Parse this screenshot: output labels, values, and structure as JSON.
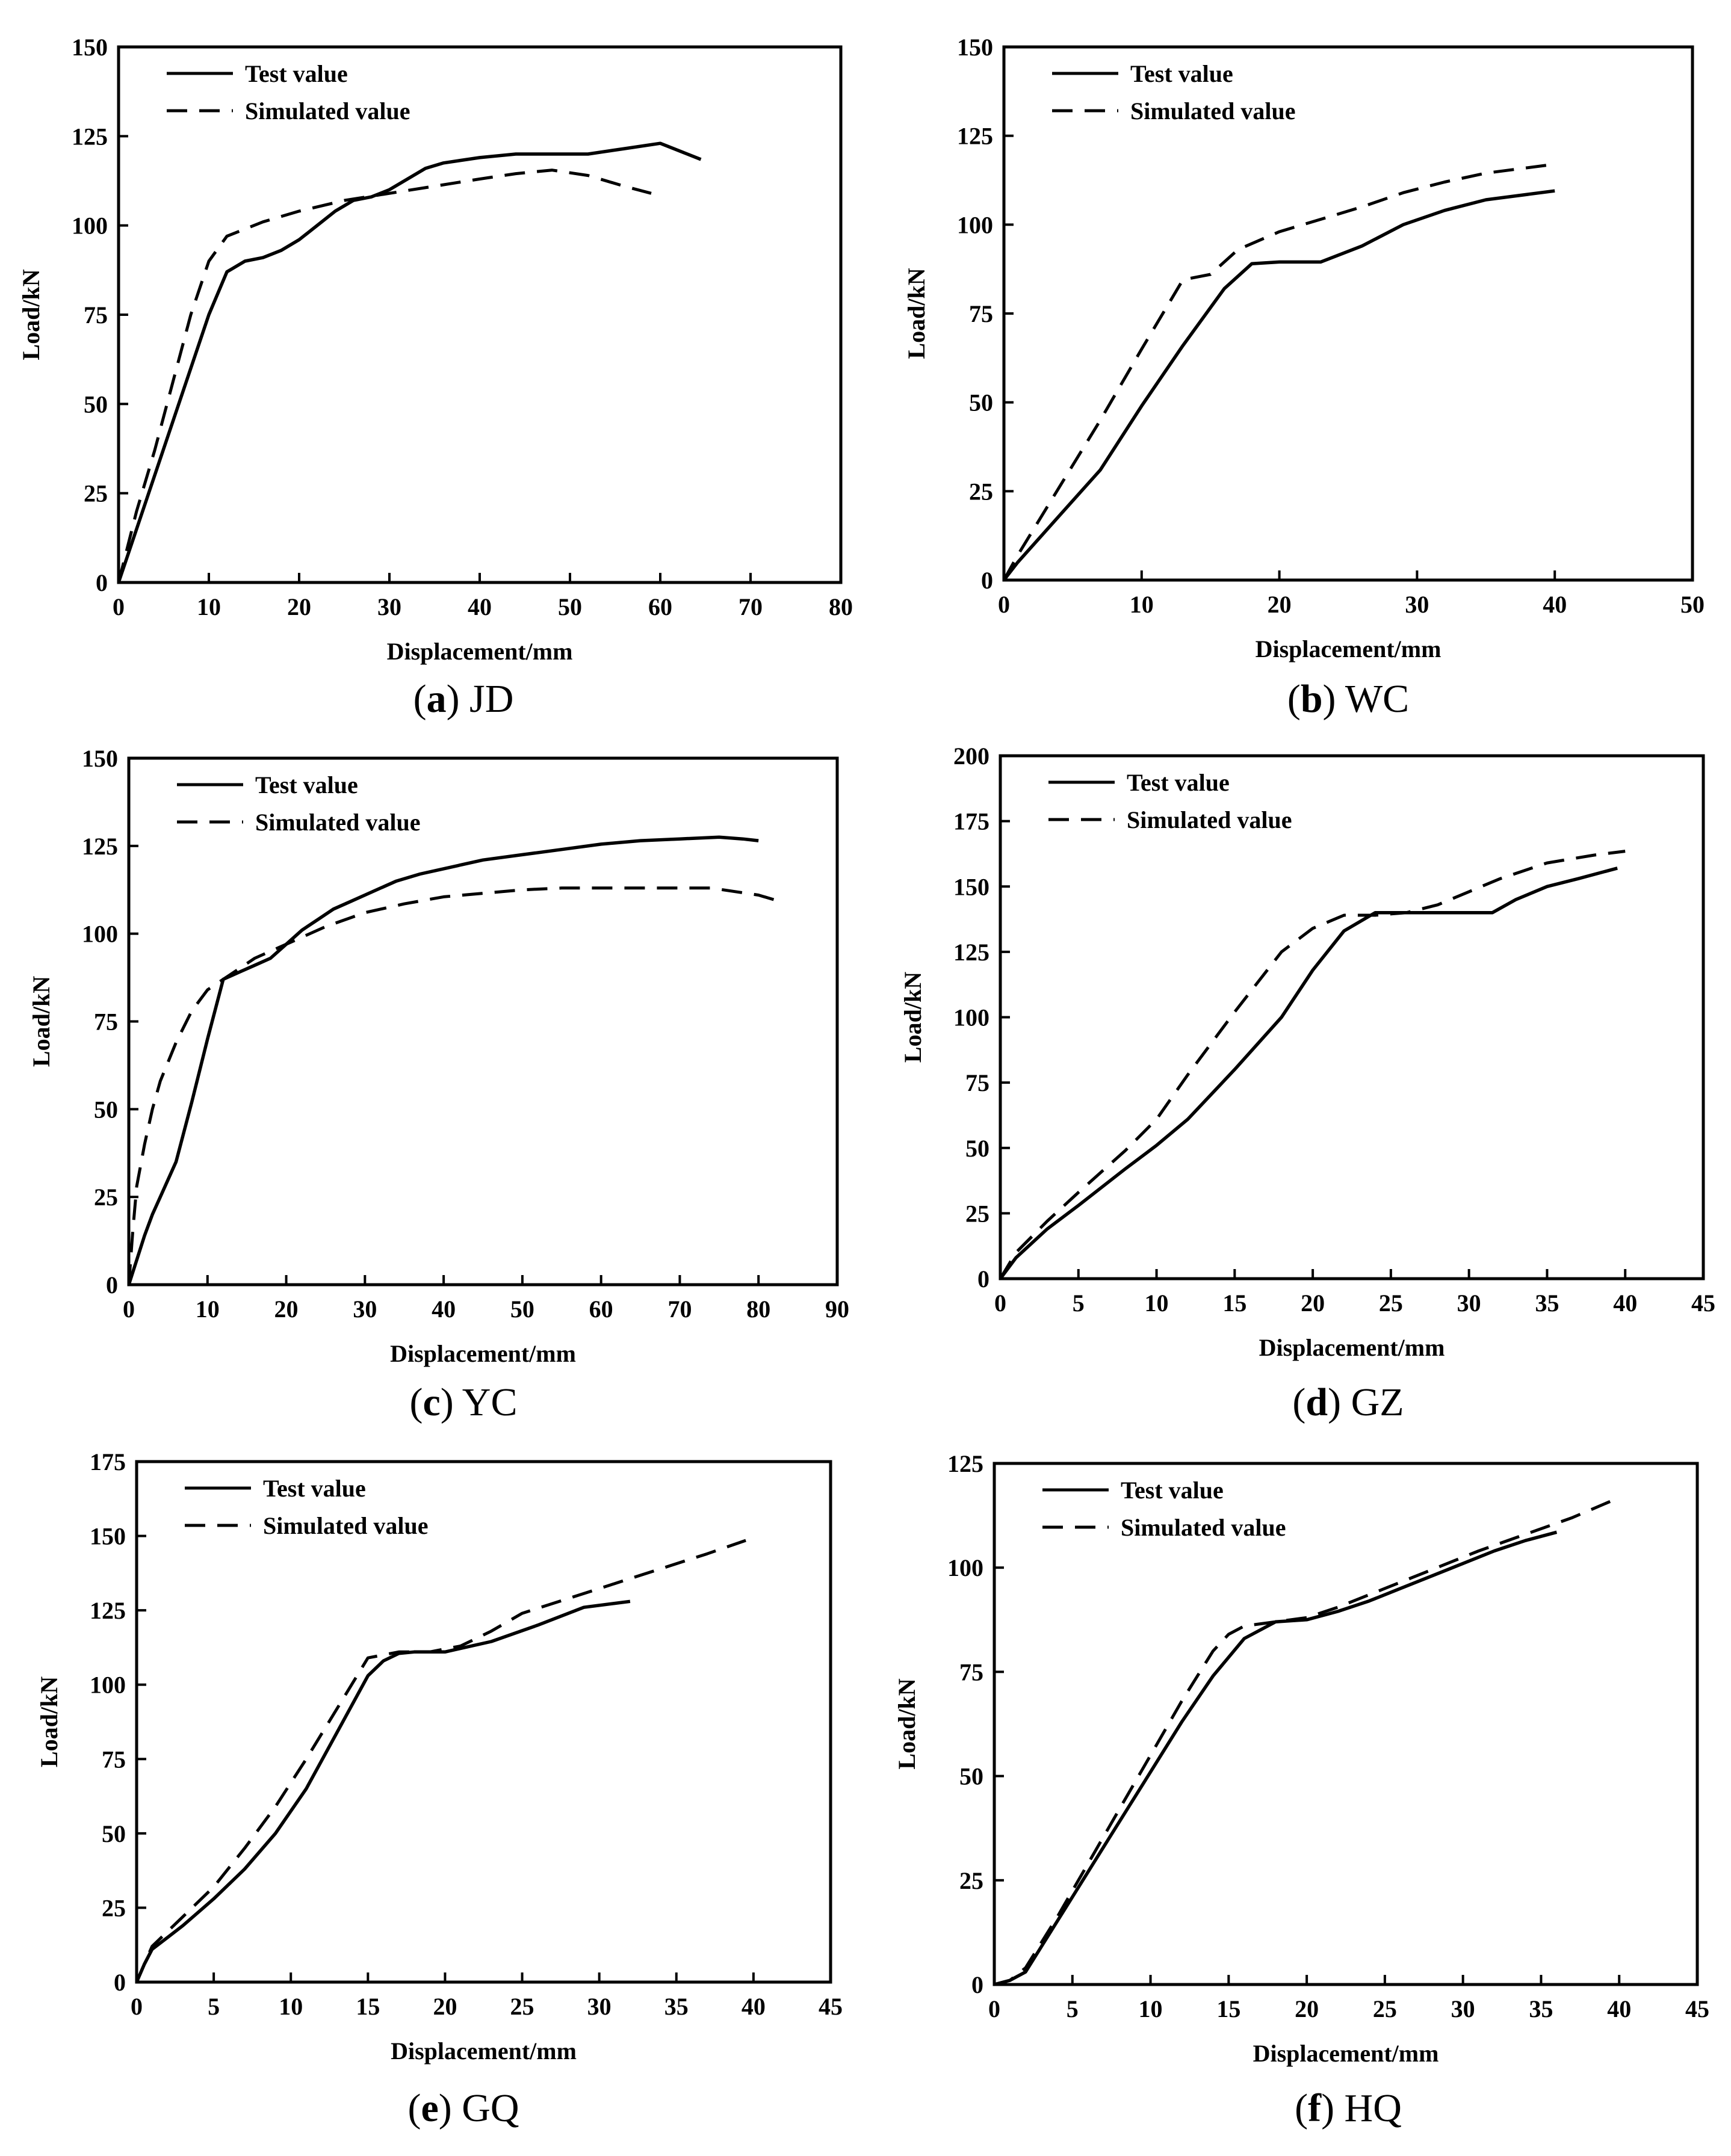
{
  "chart_data": [
    {
      "type": "line",
      "panel_label": "a",
      "panel_name": "JD",
      "xlabel": "Displacement/mm",
      "ylabel": "Load/kN",
      "xlim": [
        0,
        80
      ],
      "ylim": [
        0,
        150
      ],
      "xticks": [
        0,
        10,
        20,
        30,
        40,
        50,
        60,
        70,
        80
      ],
      "yticks": [
        0,
        25,
        50,
        75,
        100,
        125,
        150
      ],
      "legend_position": "top-left",
      "series": [
        {
          "name": "Test value",
          "style": "solid",
          "x": [
            0,
            2,
            4,
            6,
            8,
            10,
            12,
            14,
            16,
            18,
            20,
            22,
            24,
            26,
            28,
            30,
            32,
            34,
            36,
            40,
            44,
            48,
            52,
            56,
            60,
            62,
            64.5
          ],
          "y": [
            0,
            15,
            30,
            45,
            60,
            75,
            87,
            90,
            91,
            93,
            96,
            100,
            104,
            107,
            108,
            110,
            113,
            116,
            117.5,
            119,
            120,
            120,
            120,
            121.5,
            123,
            121,
            118.5
          ]
        },
        {
          "name": "Simulated value",
          "style": "dashed",
          "x": [
            0,
            2,
            4,
            6,
            8,
            10,
            12,
            14,
            16,
            20,
            25,
            30,
            35,
            40,
            44,
            48,
            52,
            56,
            59
          ],
          "y": [
            0,
            20,
            37,
            56,
            75,
            90,
            97,
            99,
            101,
            104,
            107,
            109,
            111,
            113,
            114.5,
            115.5,
            114,
            111,
            109
          ]
        }
      ]
    },
    {
      "type": "line",
      "panel_label": "b",
      "panel_name": "WC",
      "xlabel": "Displacement/mm",
      "ylabel": "Load/kN",
      "xlim": [
        0,
        50
      ],
      "ylim": [
        0,
        150
      ],
      "xticks": [
        0,
        10,
        20,
        30,
        40,
        50
      ],
      "yticks": [
        0,
        25,
        50,
        75,
        100,
        125,
        150
      ],
      "legend_position": "top-left",
      "series": [
        {
          "name": "Test value",
          "style": "solid",
          "x": [
            0,
            1,
            4,
            7,
            10,
            13,
            16,
            18,
            20,
            23,
            26,
            29,
            32,
            35,
            38,
            40
          ],
          "y": [
            0,
            5,
            18,
            31,
            49,
            66,
            82,
            89,
            89.5,
            89.5,
            94,
            100,
            104,
            107,
            108.5,
            109.5
          ]
        },
        {
          "name": "Simulated value",
          "style": "dashed",
          "x": [
            0,
            1,
            4,
            7,
            10,
            13,
            15,
            17,
            20,
            23,
            26,
            29,
            32,
            35,
            38,
            40
          ],
          "y": [
            0,
            7,
            26,
            45,
            65,
            84.5,
            86,
            93,
            98,
            101.5,
            105,
            109,
            112,
            114.5,
            116,
            117
          ]
        }
      ]
    },
    {
      "type": "line",
      "panel_label": "c",
      "panel_name": "YC",
      "xlabel": "Displacement/mm",
      "ylabel": "Load/kN",
      "xlim": [
        0,
        90
      ],
      "ylim": [
        0,
        150
      ],
      "xticks": [
        0,
        10,
        20,
        30,
        40,
        50,
        60,
        70,
        80,
        90
      ],
      "yticks": [
        0,
        25,
        50,
        75,
        100,
        125,
        150
      ],
      "legend_position": "top-left",
      "series": [
        {
          "name": "Test value",
          "style": "solid",
          "x": [
            0,
            1,
            2,
            3,
            4,
            6,
            8,
            10,
            12,
            14,
            16,
            18,
            20,
            22,
            24,
            26,
            28,
            30,
            32,
            34,
            37,
            40,
            45,
            50,
            55,
            60,
            65,
            70,
            75,
            78,
            80
          ],
          "y": [
            0,
            7,
            14,
            20,
            25,
            35,
            52,
            70,
            87,
            89,
            91,
            93,
            97,
            101,
            104,
            107,
            109,
            111,
            113,
            115,
            117,
            118.5,
            121,
            122.5,
            124,
            125.5,
            126.5,
            127,
            127.5,
            127,
            126.5
          ]
        },
        {
          "name": "Simulated value",
          "style": "dashed",
          "x": [
            0,
            0.5,
            1,
            2,
            3,
            4,
            6,
            8,
            10,
            12,
            14,
            16,
            18,
            20,
            25,
            30,
            35,
            40,
            45,
            50,
            55,
            60,
            65,
            70,
            74,
            77,
            80,
            83
          ],
          "y": [
            0,
            15,
            28,
            40,
            50,
            58,
            69,
            78,
            84,
            87,
            90,
            93,
            95,
            97,
            102,
            106,
            108.5,
            110.5,
            111.5,
            112.5,
            113,
            113,
            113,
            113,
            113,
            112,
            111,
            109
          ]
        }
      ]
    },
    {
      "type": "line",
      "panel_label": "d",
      "panel_name": "GZ",
      "xlabel": "Displacement/mm",
      "ylabel": "Load/kN",
      "xlim": [
        0,
        45
      ],
      "ylim": [
        0,
        200
      ],
      "xticks": [
        0,
        5,
        10,
        15,
        20,
        25,
        30,
        35,
        40,
        45
      ],
      "yticks": [
        0,
        25,
        50,
        75,
        100,
        125,
        150,
        175,
        200
      ],
      "legend_position": "top-left",
      "series": [
        {
          "name": "Test value",
          "style": "solid",
          "x": [
            0,
            1,
            3,
            5,
            8,
            10,
            12,
            15,
            18,
            20,
            22,
            24,
            26,
            28,
            30,
            31.5,
            33,
            35,
            37,
            39.5
          ],
          "y": [
            0,
            8,
            19,
            28,
            42,
            51,
            61,
            80,
            100,
            118,
            133,
            140,
            140,
            140,
            140,
            140,
            145,
            150,
            153,
            157
          ]
        },
        {
          "name": "Simulated value",
          "style": "dashed",
          "x": [
            0,
            1,
            3,
            5,
            8,
            10,
            12,
            15,
            18,
            20,
            22,
            24,
            26,
            28,
            30,
            32,
            35,
            38,
            40
          ],
          "y": [
            0,
            10,
            22,
            33,
            49,
            61,
            78,
            102,
            125,
            134,
            139,
            139,
            140,
            143,
            148,
            153,
            159,
            162,
            163.5
          ]
        }
      ]
    },
    {
      "type": "line",
      "panel_label": "e",
      "panel_name": "GQ",
      "xlabel": "Displacement/mm",
      "ylabel": "Load/kN",
      "xlim": [
        0,
        45
      ],
      "ylim": [
        0,
        175
      ],
      "xticks": [
        0,
        5,
        10,
        15,
        20,
        25,
        30,
        35,
        40,
        45
      ],
      "yticks": [
        0,
        25,
        50,
        75,
        100,
        125,
        150,
        175
      ],
      "legend_position": "top-left",
      "series": [
        {
          "name": "Test value",
          "style": "solid",
          "x": [
            0,
            0.5,
            1,
            2,
            3,
            5,
            7,
            9,
            11,
            13,
            15,
            16,
            17,
            18,
            20,
            23,
            26,
            29,
            32
          ],
          "y": [
            0,
            6,
            11,
            15,
            19,
            28,
            38,
            50,
            65,
            84,
            103,
            108,
            110.5,
            111,
            111,
            114.5,
            120,
            126,
            128
          ]
        },
        {
          "name": "Simulated value",
          "style": "dashed",
          "x": [
            0,
            1,
            3,
            5,
            7,
            9,
            11,
            13,
            15,
            17,
            19,
            21,
            23,
            25,
            28,
            31,
            34,
            37,
            39.5
          ],
          "y": [
            0,
            12,
            22,
            32,
            45,
            59,
            75,
            92,
            109,
            111,
            111,
            113,
            118,
            124,
            129,
            134,
            139,
            144,
            148.5
          ]
        }
      ]
    },
    {
      "type": "line",
      "panel_label": "f",
      "panel_name": "HQ",
      "xlabel": "Displacement/mm",
      "ylabel": "Load/kN",
      "xlim": [
        0,
        45
      ],
      "ylim": [
        0,
        125
      ],
      "xticks": [
        0,
        5,
        10,
        15,
        20,
        25,
        30,
        35,
        40,
        45
      ],
      "yticks": [
        0,
        25,
        50,
        75,
        100,
        125
      ],
      "legend_position": "top-left",
      "series": [
        {
          "name": "Test value",
          "style": "solid",
          "x": [
            0,
            1,
            2,
            4,
            6,
            8,
            10,
            12,
            14,
            16,
            18,
            20,
            22,
            24,
            26,
            28,
            30,
            32,
            34,
            36
          ],
          "y": [
            0,
            1,
            3,
            15,
            27,
            39,
            51,
            63,
            74,
            83,
            87,
            87.5,
            89.5,
            92,
            95,
            98,
            101,
            104,
            106.5,
            108.5
          ]
        },
        {
          "name": "Simulated value",
          "style": "dashed",
          "x": [
            0,
            1,
            2,
            4,
            6,
            8,
            10,
            12,
            14,
            15,
            16,
            18,
            20,
            22,
            25,
            28,
            31,
            34,
            37,
            39.5
          ],
          "y": [
            0,
            1,
            4,
            16,
            29,
            42,
            55,
            68,
            80,
            84,
            86,
            87,
            88,
            90.5,
            95,
            99.5,
            104,
            108,
            112,
            116
          ]
        }
      ]
    }
  ]
}
